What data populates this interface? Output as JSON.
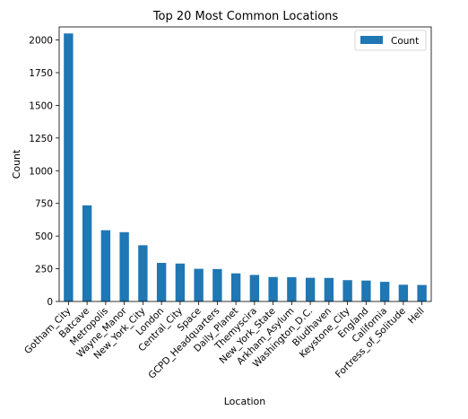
{
  "chart_data": {
    "type": "bar",
    "title": "Top 20 Most Common Locations",
    "xlabel": "Location",
    "ylabel": "Count",
    "ylim": [
      0,
      2100
    ],
    "yticks": [
      0,
      250,
      500,
      750,
      1000,
      1250,
      1500,
      1750,
      2000
    ],
    "legend": {
      "position": "top-right"
    },
    "grid": false,
    "categories": [
      "Gotham_City",
      "Batcave",
      "Metropolis",
      "Wayne_Manor",
      "New_York_City",
      "London",
      "Central_City",
      "Space",
      "GCPD_Headquarters",
      "Daily_Planet",
      "Themyscira",
      "New_York_State",
      "Arkham_Asylum",
      "Washington_D.C.",
      "Bludhaven",
      "Keystone_City",
      "England",
      "California",
      "Fortress_of_Solitude",
      "Hell"
    ],
    "series": [
      {
        "name": "Count",
        "color": "#1f77b4",
        "values": [
          2050,
          735,
          545,
          530,
          430,
          295,
          290,
          250,
          248,
          215,
          203,
          187,
          186,
          181,
          180,
          163,
          160,
          150,
          128,
          126
        ]
      }
    ]
  }
}
